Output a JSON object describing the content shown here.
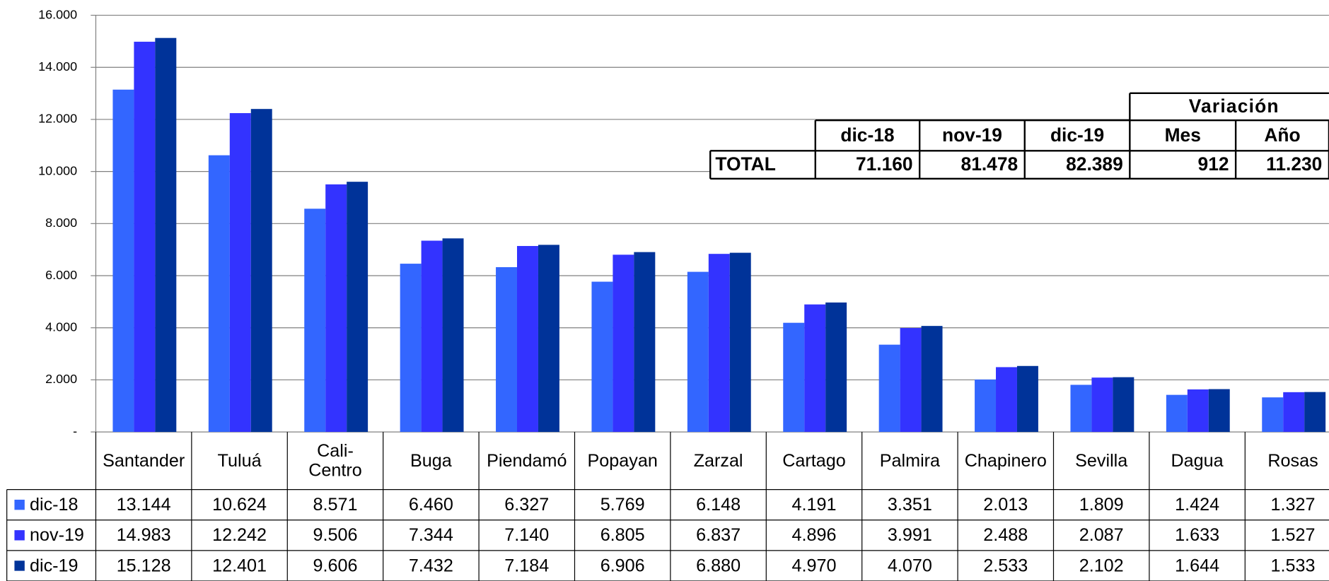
{
  "chart_data": {
    "type": "bar",
    "categories": [
      "Santander",
      "Tuluá",
      "Cali-Centro",
      "Buga",
      "Piendamó",
      "Popayan",
      "Zarzal",
      "Cartago",
      "Palmira",
      "Chapinero",
      "Sevilla",
      "Dagua",
      "Rosas"
    ],
    "series": [
      {
        "name": "dic-18",
        "color": "#3366ff",
        "values": [
          13144,
          10624,
          8571,
          6460,
          6327,
          5769,
          6148,
          4191,
          3351,
          2013,
          1809,
          1424,
          1327
        ],
        "value_labels": [
          "13.144",
          "10.624",
          "8.571",
          "6.460",
          "6.327",
          "5.769",
          "6.148",
          "4.191",
          "3.351",
          "2.013",
          "1.809",
          "1.424",
          "1.327"
        ]
      },
      {
        "name": "nov-19",
        "color": "#3333ff",
        "values": [
          14983,
          12242,
          9506,
          7344,
          7140,
          6805,
          6837,
          4896,
          3991,
          2488,
          2087,
          1633,
          1527
        ],
        "value_labels": [
          "14.983",
          "12.242",
          "9.506",
          "7.344",
          "7.140",
          "6.805",
          "6.837",
          "4.896",
          "3.991",
          "2.488",
          "2.087",
          "1.633",
          "1.527"
        ]
      },
      {
        "name": "dic-19",
        "color": "#003399",
        "values": [
          15128,
          12401,
          9606,
          7432,
          7184,
          6906,
          6880,
          4970,
          4070,
          2533,
          2102,
          1644,
          1533
        ],
        "value_labels": [
          "15.128",
          "12.401",
          "9.606",
          "7.432",
          "7.184",
          "6.906",
          "6.880",
          "4.970",
          "4.070",
          "2.533",
          "2.102",
          "1.644",
          "1.533"
        ]
      }
    ],
    "ylim": [
      0,
      16000
    ],
    "yticks": [
      {
        "value": 0,
        "label": "-"
      },
      {
        "value": 2000,
        "label": "2.000"
      },
      {
        "value": 4000,
        "label": "4.000"
      },
      {
        "value": 6000,
        "label": "6.000"
      },
      {
        "value": 8000,
        "label": "8.000"
      },
      {
        "value": 10000,
        "label": "10.000"
      },
      {
        "value": 12000,
        "label": "12.000"
      },
      {
        "value": 14000,
        "label": "14.000"
      },
      {
        "value": 16000,
        "label": "16.000"
      }
    ],
    "grid": true,
    "summary_table": {
      "group_header": "Variación",
      "columns": [
        "dic-18",
        "nov-19",
        "dic-19",
        "Mes",
        "Año"
      ],
      "row_label": "TOTAL",
      "cells": [
        "71.160",
        "81.478",
        "82.389",
        "912",
        "11.230"
      ]
    }
  }
}
